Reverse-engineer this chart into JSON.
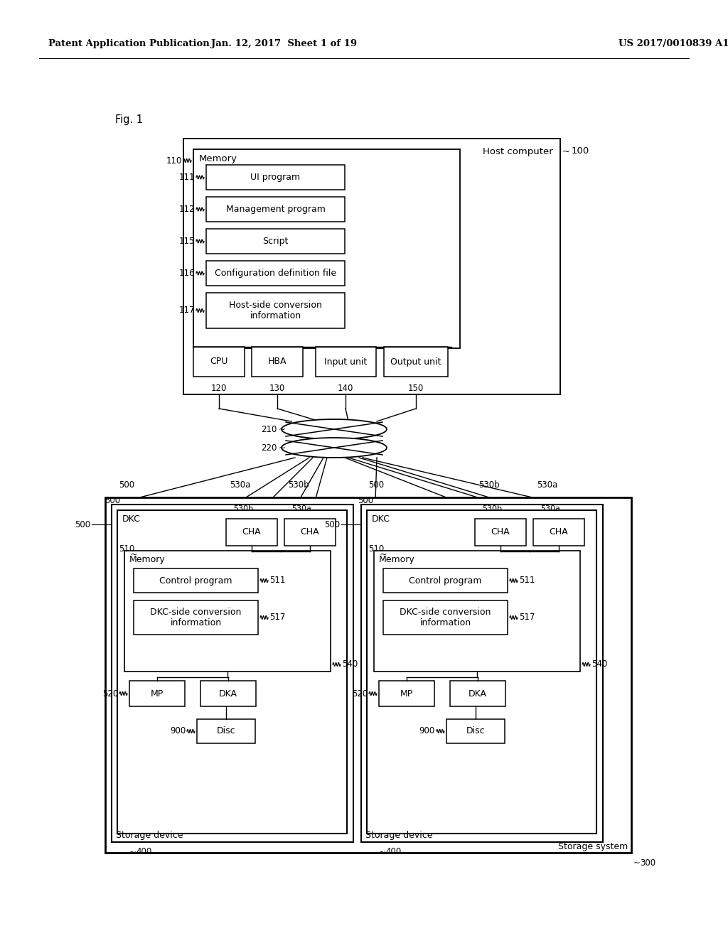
{
  "bg_color": "#ffffff",
  "header_left": "Patent Application Publication",
  "header_mid": "Jan. 12, 2017  Sheet 1 of 19",
  "header_right": "US 2017/0010839 A1",
  "fig_label": "Fig. 1",
  "host_label": "Host computer",
  "host_ref": "100",
  "memory_label": "Memory",
  "mem_ref": "110",
  "ui_label": "UI program",
  "ui_ref": "111",
  "mgmt_label": "Management program",
  "mgmt_ref": "112",
  "script_label": "Script",
  "script_ref": "115",
  "config_label": "Configuration definition file",
  "config_ref": "116",
  "host_conv_label": "Host-side conversion\ninformation",
  "host_conv_ref": "117",
  "cpu_label": "CPU",
  "cpu_ref": "120",
  "hba_label": "HBA",
  "hba_ref": "130",
  "input_label": "Input unit",
  "input_ref": "140",
  "output_label": "Output unit",
  "output_ref": "150",
  "fabric1_ref": "210",
  "fabric2_ref": "220",
  "storage_system_label": "Storage system",
  "storage_system_ref": "300",
  "storage_device_label": "Storage device",
  "storage_device_ref_left": "400",
  "storage_device_ref_right": "400",
  "dkc_label": "DKC",
  "cha_label": "CHA",
  "dkc_ref_left": "500",
  "dkc_ref_right": "500",
  "cha_a_ref": "530a",
  "cha_b_ref": "530b",
  "dkc_mem_label": "Memory",
  "dkc_mem_ref": "510",
  "ctrl_prog_label": "Control program",
  "ctrl_prog_ref": "511",
  "dkc_conv_label": "DKC-side conversion\ninformation",
  "dkc_conv_ref": "517",
  "mp_label": "MP",
  "mp_ref": "520",
  "dka_label": "DKA",
  "dka_ref": "540",
  "disc_label": "Disc",
  "disc_ref": "900"
}
